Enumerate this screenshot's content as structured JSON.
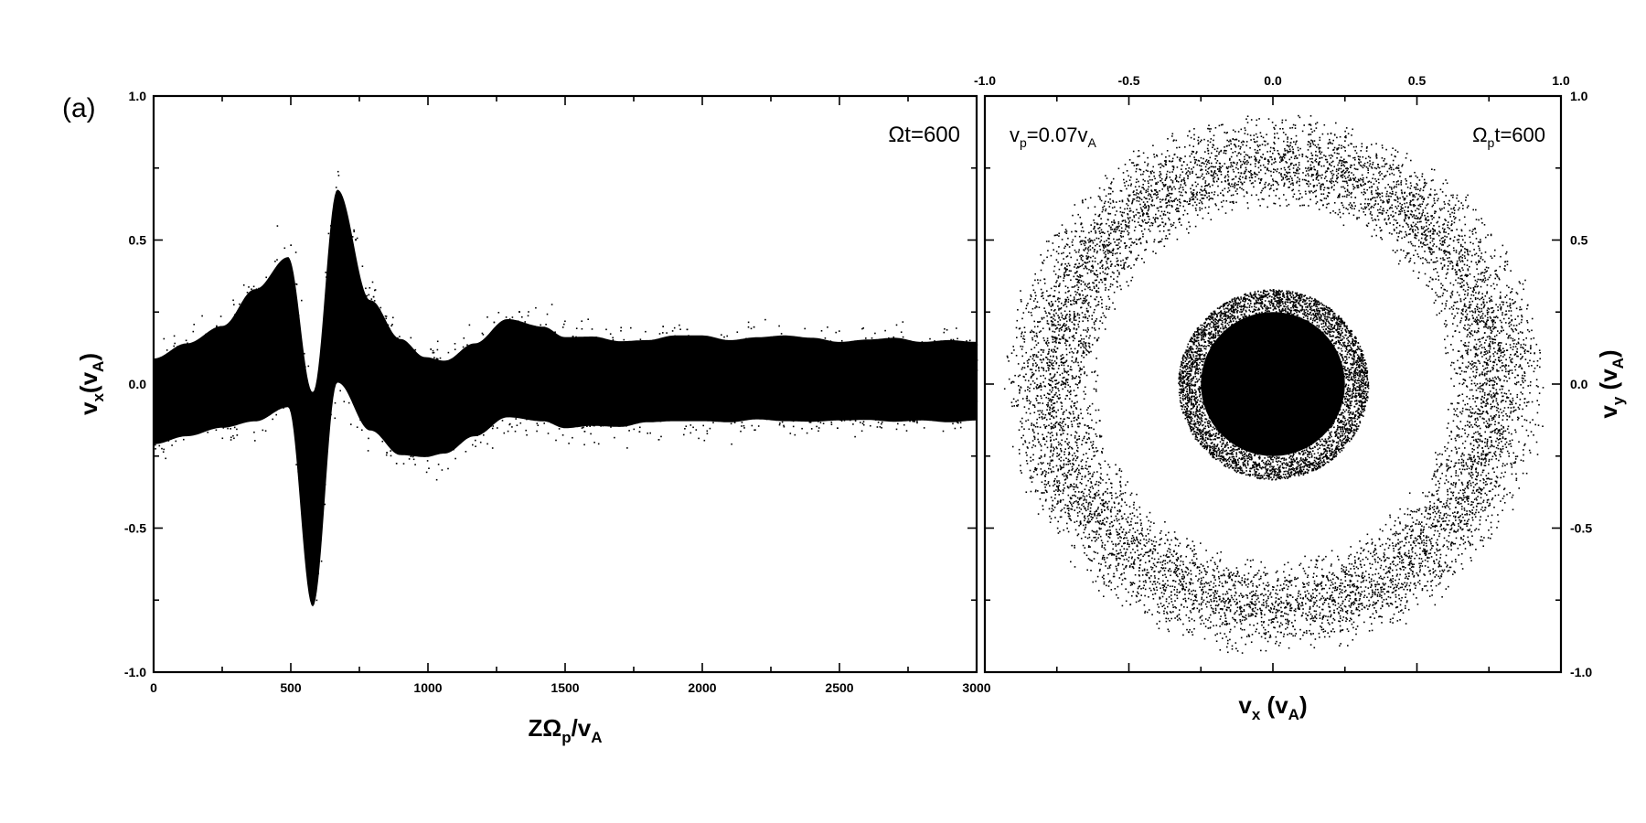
{
  "panel_label": "(a)",
  "chart_data": [
    {
      "type": "scatter",
      "title": "",
      "annotation": "Ωt=600",
      "xlabel": {
        "main": "ZΩ",
        "sub1": "p",
        "mid": "/v",
        "sub2": "A"
      },
      "ylabel": {
        "main": "v",
        "sub1": "x",
        "mid": "(v",
        "sub2": "A",
        "end": ")"
      },
      "xlim": [
        0,
        3000
      ],
      "ylim": [
        -1.0,
        1.0
      ],
      "xticks": [
        "0",
        "500",
        "1000",
        "1500",
        "2000",
        "2500",
        "3000"
      ],
      "yticks": [
        "-1.0",
        "-0.5",
        "0.0",
        "0.5",
        "1.0"
      ],
      "grid": false,
      "series": [
        {
          "envelope_x": [
            0,
            120,
            250,
            370,
            490,
            580,
            670,
            790,
            900,
            990,
            1060,
            1170,
            1290,
            1420,
            1500,
            1600,
            1700,
            1800,
            1900,
            2000,
            2100,
            2200,
            2300,
            2400,
            2500,
            2600,
            2700,
            2800,
            2900,
            3000
          ],
          "envelope_upper": [
            0.18,
            0.24,
            0.31,
            0.47,
            0.6,
            0.2,
            0.88,
            0.43,
            0.28,
            0.2,
            0.18,
            0.24,
            0.33,
            0.3,
            0.26,
            0.26,
            0.24,
            0.24,
            0.26,
            0.26,
            0.24,
            0.25,
            0.26,
            0.25,
            0.23,
            0.24,
            0.25,
            0.23,
            0.24,
            0.23
          ],
          "envelope_lower": [
            -0.3,
            -0.28,
            -0.26,
            -0.27,
            -0.24,
            -1.0,
            -0.2,
            -0.3,
            -0.37,
            -0.36,
            -0.34,
            -0.28,
            -0.22,
            -0.23,
            -0.25,
            -0.24,
            -0.24,
            -0.22,
            -0.22,
            -0.22,
            -0.22,
            -0.21,
            -0.22,
            -0.22,
            -0.21,
            -0.21,
            -0.22,
            -0.21,
            -0.22,
            -0.21
          ]
        }
      ]
    },
    {
      "type": "scatter",
      "title": "",
      "annotation_left": {
        "main": "v",
        "sub": "p",
        "rest": "=0.07v",
        "sub2": "A"
      },
      "annotation_right": {
        "main": "Ω",
        "sub": "p",
        "rest": "t=600"
      },
      "xlabel": {
        "main": "v",
        "sub1": "x",
        "mid": " (v",
        "sub2": "A",
        "end": ")"
      },
      "ylabel": {
        "main": "v",
        "sub1": "y",
        "mid": " (v",
        "sub2": "A",
        "end": ")"
      },
      "xlim": [
        -1.0,
        1.0
      ],
      "ylim": [
        -1.0,
        1.0
      ],
      "xticks": [
        "-1.0",
        "-0.5",
        "0.0",
        "0.5",
        "1.0"
      ],
      "yticks": [
        "-1.0",
        "-0.5",
        "0.0",
        "0.5",
        "1.0"
      ],
      "grid": false,
      "series": [
        {
          "component": "core",
          "center": [
            0.0,
            0.0
          ],
          "dense_radius": 0.25,
          "halo_radius": 0.33
        },
        {
          "component": "ring",
          "center": [
            0.0,
            0.0
          ],
          "inner_radius": 0.6,
          "outer_radius": 0.95
        }
      ]
    }
  ]
}
